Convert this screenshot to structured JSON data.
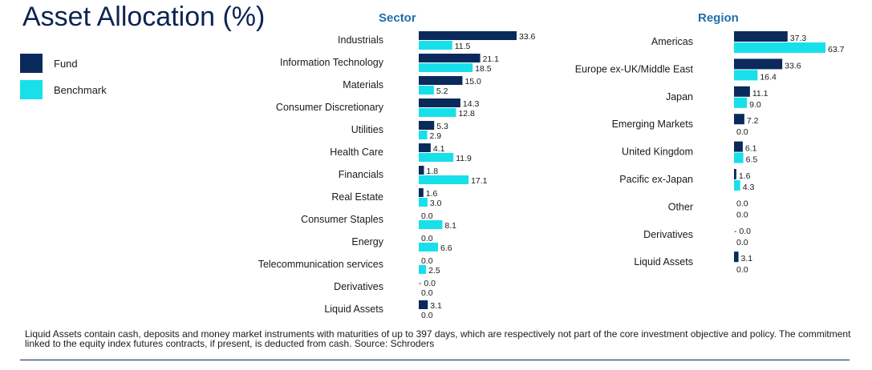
{
  "title": "Asset Allocation (%)",
  "legend": [
    {
      "label": "Fund",
      "color": "#0b2a5c"
    },
    {
      "label": "Benchmark",
      "color": "#17e0ea"
    }
  ],
  "footnote": "Liquid Assets contain cash, deposits and money market instruments with maturities of up to 397 days, which are respectively not part of the core investment objective and policy. The commitment linked to the equity index futures contracts, if present, is deducted from cash. Source: Schroders",
  "chart_data": [
    {
      "type": "bar",
      "orientation": "horizontal",
      "title": "Sector",
      "categories": [
        "Industrials",
        "Information Technology",
        "Materials",
        "Consumer Discretionary",
        "Utilities",
        "Health Care",
        "Financials",
        "Real Estate",
        "Consumer Staples",
        "Energy",
        "Telecommunication services",
        "Derivatives",
        "Liquid Assets"
      ],
      "series": [
        {
          "name": "Fund",
          "values": [
            33.6,
            21.1,
            15.0,
            14.3,
            5.3,
            4.1,
            1.8,
            1.6,
            0.0,
            0.0,
            0.0,
            -0.0,
            3.1
          ],
          "labels": [
            "33.6",
            "21.1",
            "15.0",
            "14.3",
            "5.3",
            "4.1",
            "1.8",
            "1.6",
            "0.0",
            "0.0",
            "0.0",
            "- 0.0",
            "3.1"
          ]
        },
        {
          "name": "Benchmark",
          "values": [
            11.5,
            18.5,
            5.2,
            12.8,
            2.9,
            11.9,
            17.1,
            3.0,
            8.1,
            6.6,
            2.5,
            0.0,
            0.0
          ],
          "labels": [
            "11.5",
            "18.5",
            "5.2",
            "12.8",
            "2.9",
            "11.9",
            "17.1",
            "3.0",
            "8.1",
            "6.6",
            "2.5",
            "0.0",
            "0.0"
          ]
        }
      ],
      "xlabel": "",
      "ylabel": "",
      "grid": false,
      "legend": "left"
    },
    {
      "type": "bar",
      "orientation": "horizontal",
      "title": "Region",
      "categories": [
        "Americas",
        "Europe ex-UK/Middle East",
        "Japan",
        "Emerging Markets",
        "United Kingdom",
        "Pacific ex-Japan",
        "Other",
        "Derivatives",
        "Liquid Assets"
      ],
      "series": [
        {
          "name": "Fund",
          "values": [
            37.3,
            33.6,
            11.1,
            7.2,
            6.1,
            1.6,
            0.0,
            -0.0,
            3.1
          ],
          "labels": [
            "37.3",
            "33.6",
            "11.1",
            "7.2",
            "6.1",
            "1.6",
            "0.0",
            "-  0.0",
            "3.1"
          ]
        },
        {
          "name": "Benchmark",
          "values": [
            63.7,
            16.4,
            9.0,
            0.0,
            6.5,
            4.3,
            0.0,
            0.0,
            0.0
          ],
          "labels": [
            "63.7",
            "16.4",
            "9.0",
            "0.0",
            "6.5",
            "4.3",
            "0.0",
            "0.0",
            "0.0"
          ]
        }
      ],
      "xlabel": "",
      "ylabel": "",
      "grid": false,
      "legend": "left"
    }
  ]
}
